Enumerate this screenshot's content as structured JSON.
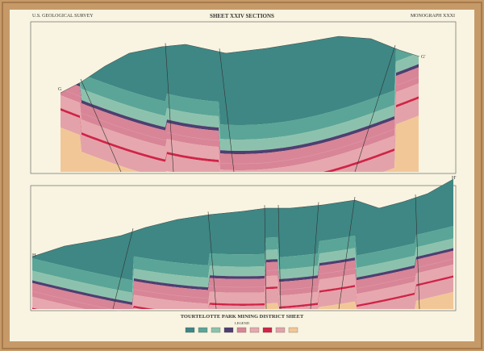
{
  "header": {
    "left": "U.S. GEOLOGICAL SURVEY",
    "title": "SHEET XXIV SECTIONS",
    "right": "MONOGRAPH XXXI"
  },
  "sections": [
    {
      "start": "G",
      "end": "G'"
    },
    {
      "start": "H",
      "end": "H'"
    }
  ],
  "footer": {
    "title": "TOURTELOTTE PARK MINING DISTRICT SHEET",
    "legend": "LEGEND"
  }
}
